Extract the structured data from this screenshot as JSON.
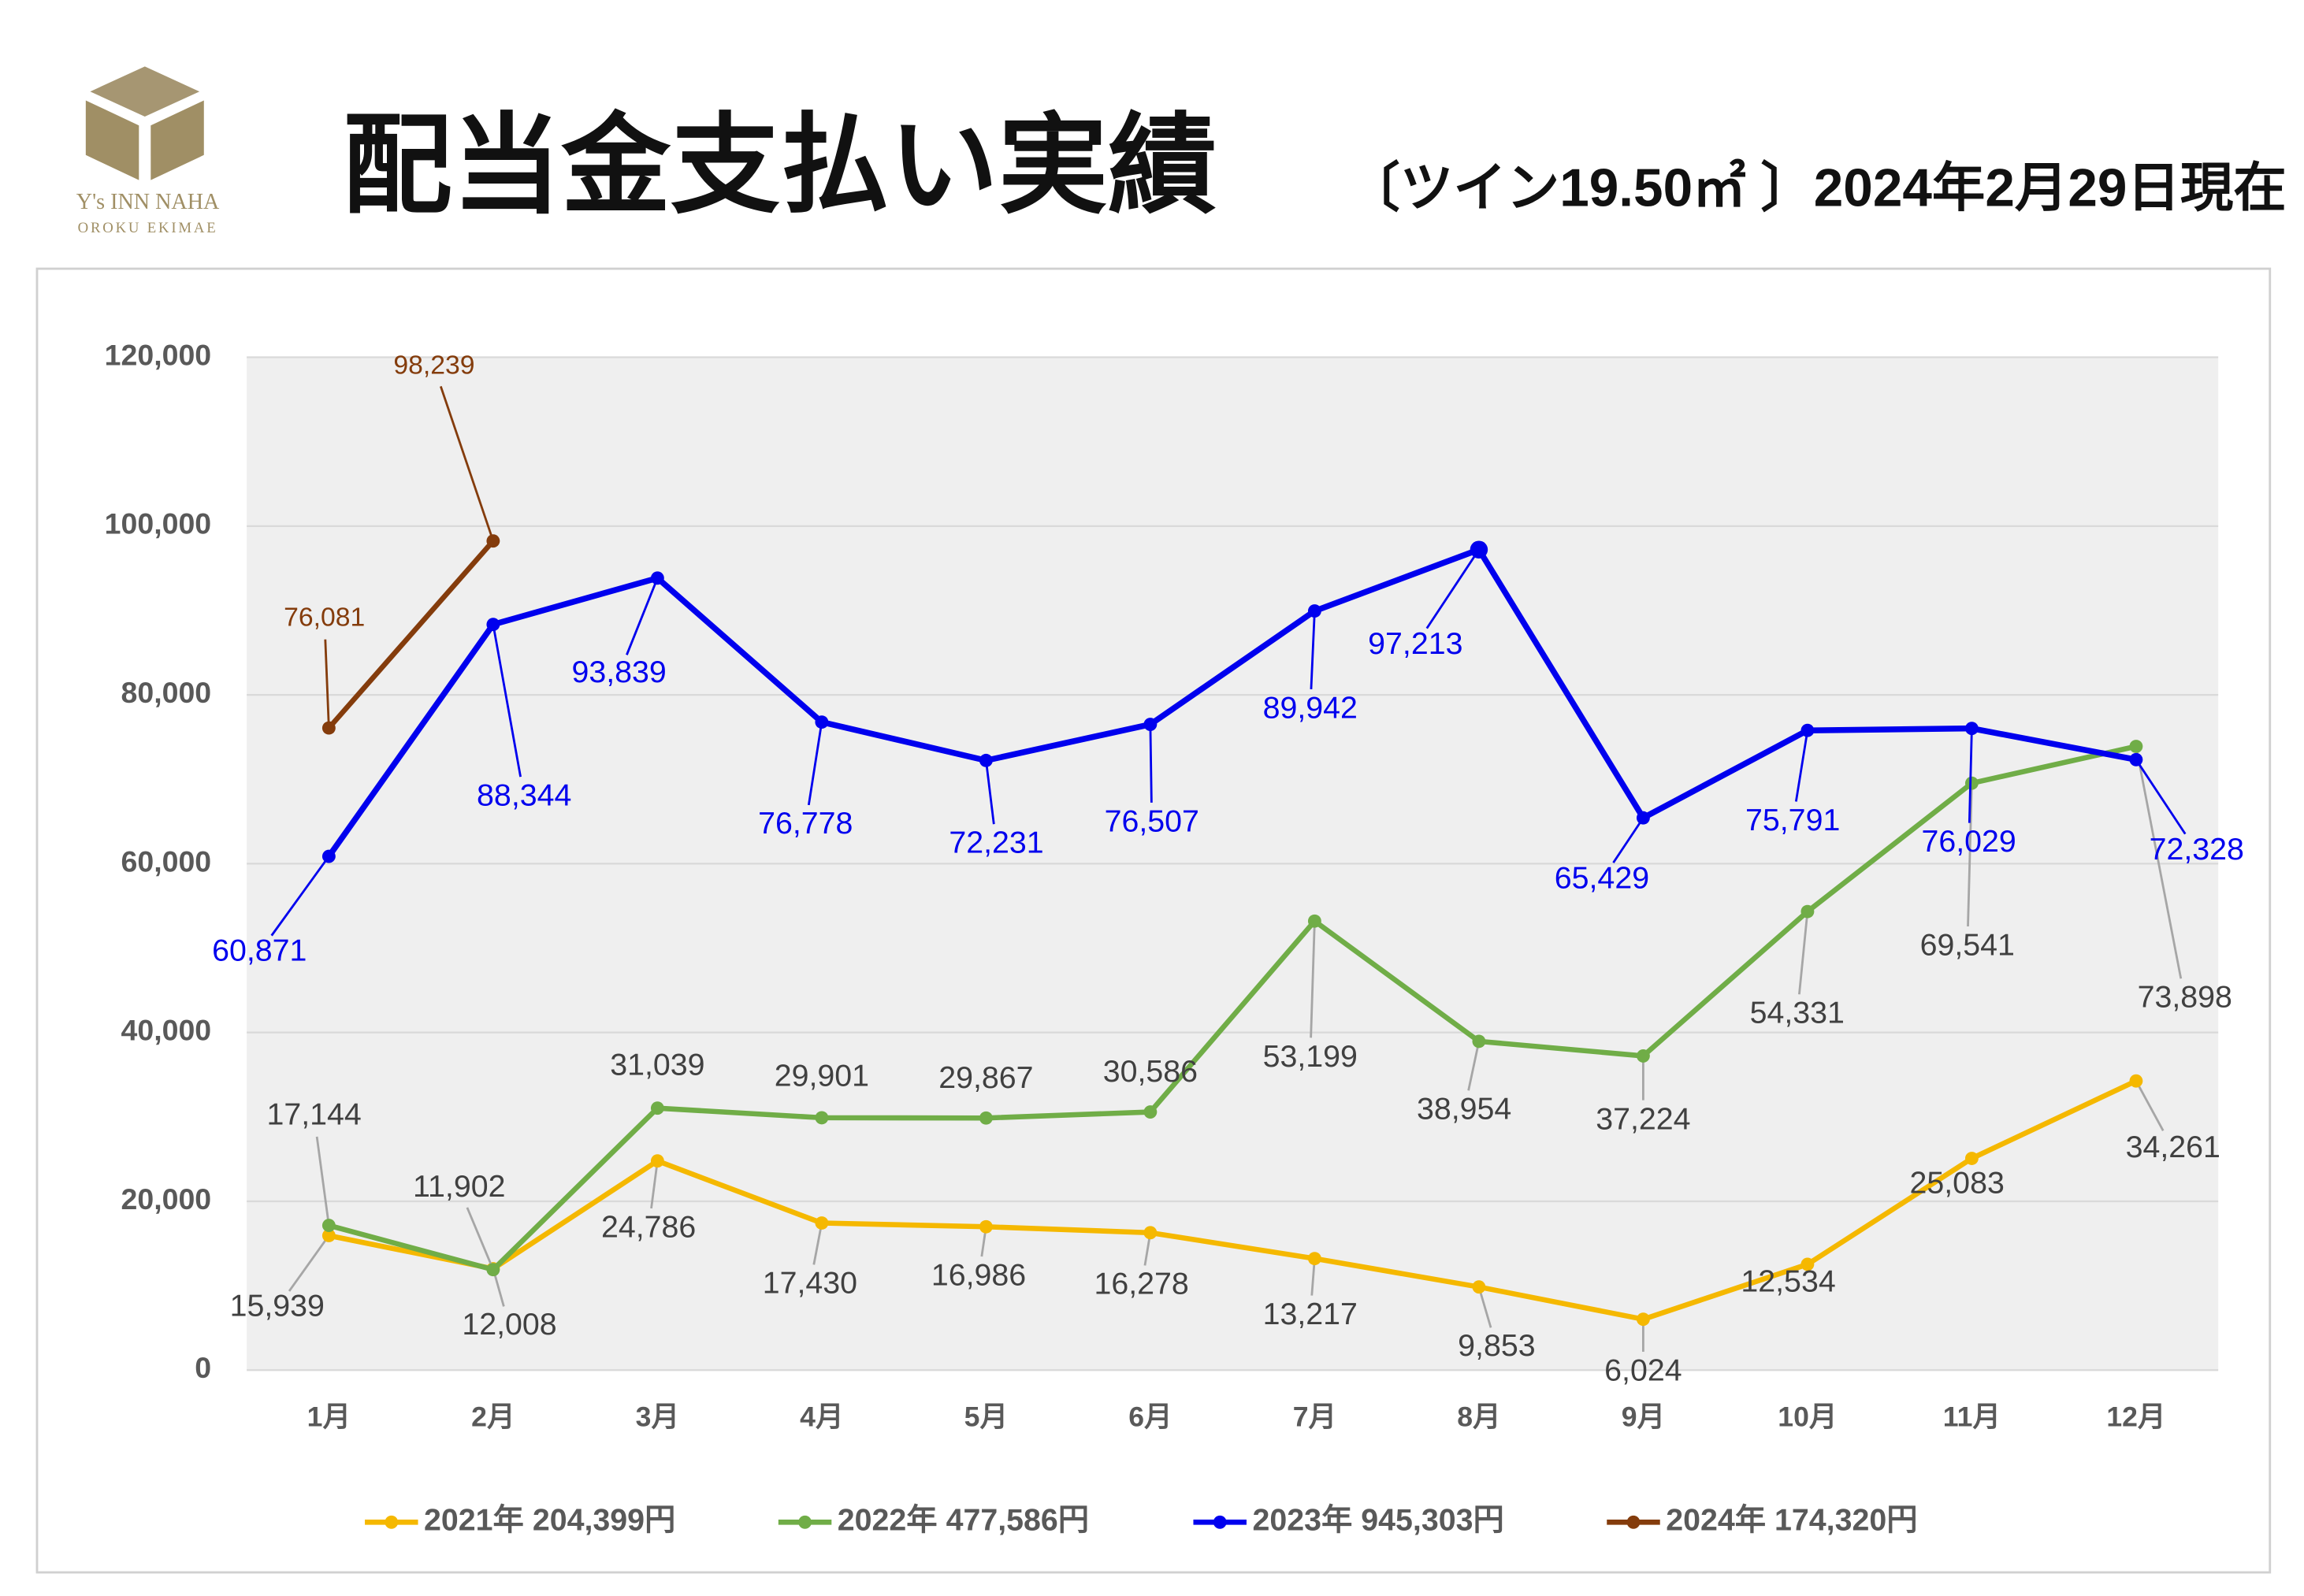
{
  "logo": {
    "name": "Y's INN NAHA",
    "subname": "OROKU EKIMAE"
  },
  "chart_data": {
    "type": "line",
    "title": "配当金支払い実績",
    "subtitle": "〔ツイン19.50㎡ 〕2024年2月29日現在",
    "categories": [
      "1月",
      "2月",
      "3月",
      "4月",
      "5月",
      "6月",
      "7月",
      "8月",
      "9月",
      "10月",
      "11月",
      "12月"
    ],
    "ylim": [
      0,
      120000
    ],
    "yticks": [
      0,
      {
        "value": 20000,
        "label": "20,000"
      },
      {
        "value": 40000,
        "label": "40,000"
      },
      {
        "value": 60000,
        "label": "60,000"
      },
      {
        "value": 80000,
        "label": "80,000"
      },
      {
        "value": 100000,
        "label": "100,000"
      },
      {
        "value": 120000,
        "label": "120,000"
      }
    ],
    "grid": true,
    "legend": "bottom",
    "series": [
      {
        "name": "2021年 204,399円",
        "color": "#f5b800",
        "values": [
          15939,
          12008,
          24786,
          17430,
          16986,
          16278,
          13217,
          9853,
          6024,
          12534,
          25083,
          34261
        ],
        "value_labels": [
          "15,939",
          "12,008",
          "24,786",
          "17,430",
          "16,986",
          "16,278",
          "13,217",
          "9,853",
          "6,024",
          "12,534",
          "25,083",
          "34,261"
        ]
      },
      {
        "name": "2022年 477,586円",
        "color": "#70ad47",
        "values": [
          17144,
          11902,
          31039,
          29901,
          29867,
          30586,
          53199,
          38954,
          37224,
          54331,
          69541,
          73898
        ],
        "value_labels": [
          "17,144",
          "11,902",
          "31,039",
          "29,901",
          "29,867",
          "30,586",
          "53,199",
          "38,954",
          "37,224",
          "54,331",
          "69,541",
          "73,898"
        ]
      },
      {
        "name": "2023年 945,303円",
        "color": "#0000ee",
        "values": [
          60871,
          88344,
          93839,
          76778,
          72231,
          76507,
          89942,
          97213,
          65429,
          75791,
          76029,
          72328
        ],
        "value_labels": [
          "60,871",
          "88,344",
          "93,839",
          "76,778",
          "72,231",
          "76,507",
          "89,942",
          "97,213",
          "65,429",
          "75,791",
          "76,029",
          "72,328"
        ]
      },
      {
        "name": "2024年 174,320円",
        "color": "#843c0c",
        "values": [
          76081,
          98239,
          null,
          null,
          null,
          null,
          null,
          null,
          null,
          null,
          null,
          null
        ],
        "value_labels": [
          "76,081",
          "98,239",
          null,
          null,
          null,
          null,
          null,
          null,
          null,
          null,
          null,
          null
        ]
      }
    ]
  }
}
